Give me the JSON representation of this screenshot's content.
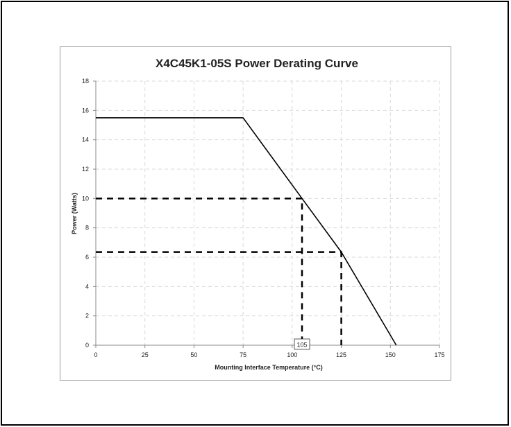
{
  "chart_data": {
    "type": "line",
    "title": "X4C45K1-05S Power Derating Curve",
    "xlabel": "Mounting Interface Temperature (°C)",
    "ylabel": "Power (Watts)",
    "xlim": [
      0,
      175
    ],
    "ylim": [
      0,
      18
    ],
    "xticks": [
      0,
      25,
      50,
      75,
      100,
      125,
      150,
      175
    ],
    "yticks": [
      0,
      2,
      4,
      6,
      8,
      10,
      12,
      14,
      16,
      18
    ],
    "grid": true,
    "legend": "none",
    "series": [
      {
        "color": "#000000",
        "style": "solid",
        "points": [
          [
            0,
            15.5
          ],
          [
            75,
            15.5
          ],
          [
            105,
            10.0
          ],
          [
            125,
            6.35
          ],
          [
            153,
            0
          ]
        ]
      }
    ],
    "reference_lines": [
      {
        "style": "dashed",
        "points": [
          [
            0,
            10.0
          ],
          [
            105,
            10.0
          ],
          [
            105,
            0
          ]
        ]
      },
      {
        "style": "dashed",
        "points": [
          [
            0,
            6.35
          ],
          [
            125,
            6.35
          ],
          [
            125,
            0
          ]
        ]
      }
    ],
    "annotations": [
      {
        "text": "105",
        "x": 105,
        "y": 0
      }
    ]
  },
  "colors": {
    "grid": "#d9d9d9",
    "line": "#000000",
    "axis": "#888888"
  }
}
